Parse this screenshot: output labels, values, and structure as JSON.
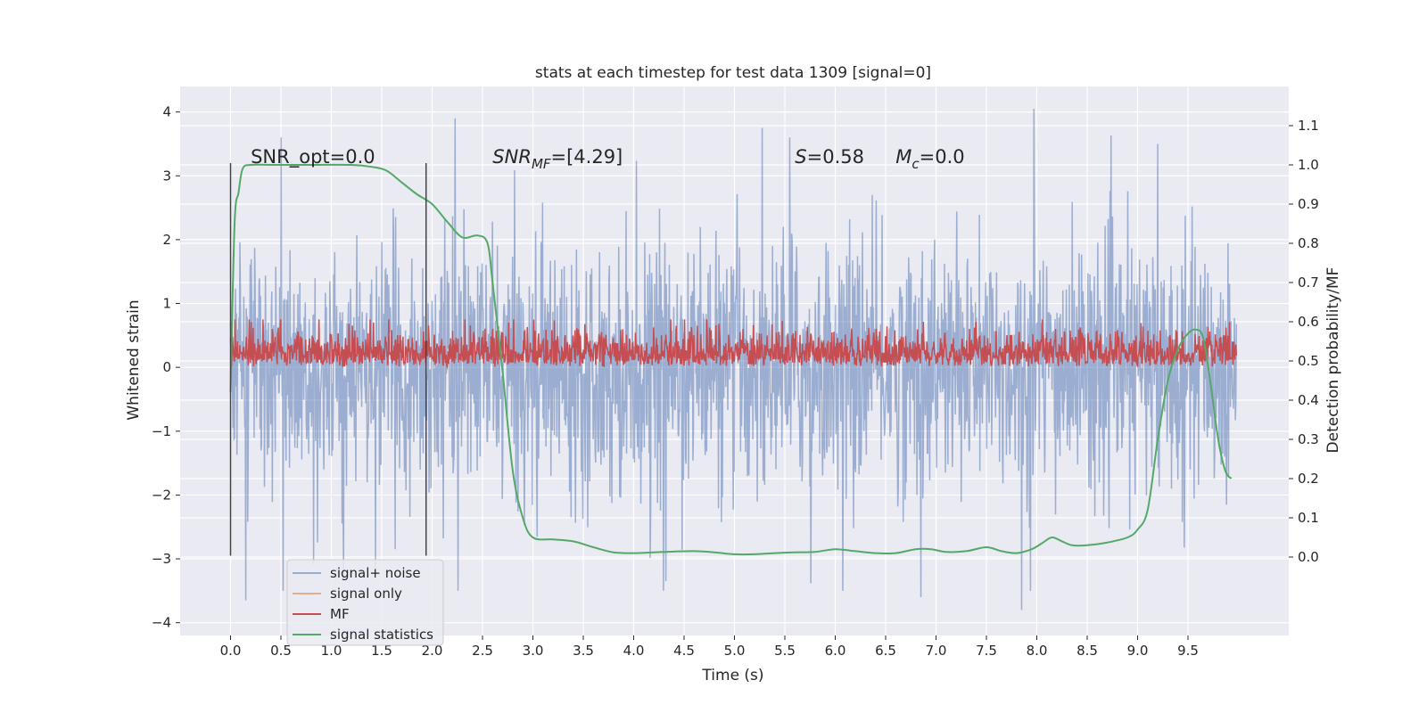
{
  "chart_data": {
    "type": "line",
    "title": "stats at each timestep for test data 1309 [signal=0]",
    "xlabel": "Time (s)",
    "ylabel": "Whitened strain",
    "y2label": "Detection probability/MF",
    "xlim": [
      -0.5,
      10.5
    ],
    "ylim": [
      -4.2,
      4.4
    ],
    "y2lim": [
      -0.2,
      1.2
    ],
    "x_ticks": [
      0.0,
      0.5,
      1.0,
      1.5,
      2.0,
      2.5,
      3.0,
      3.5,
      4.0,
      4.5,
      5.0,
      5.5,
      6.0,
      6.5,
      7.0,
      7.5,
      8.0,
      8.5,
      9.0,
      9.5
    ],
    "x_tick_labels": [
      "0.0",
      "0.5",
      "1.0",
      "1.5",
      "2.0",
      "2.5",
      "3.0",
      "3.5",
      "4.0",
      "4.5",
      "5.0",
      "5.5",
      "6.0",
      "6.5",
      "7.0",
      "7.5",
      "8.0",
      "8.5",
      "9.0",
      "9.5"
    ],
    "y_ticks": [
      -4,
      -3,
      -2,
      -1,
      0,
      1,
      2,
      3,
      4
    ],
    "y_tick_labels": [
      "−4",
      "−3",
      "−2",
      "−1",
      "0",
      "1",
      "2",
      "3",
      "4"
    ],
    "y2_ticks": [
      0.0,
      0.1,
      0.2,
      0.3,
      0.4,
      0.5,
      0.6,
      0.7,
      0.8,
      0.9,
      1.0,
      1.1
    ],
    "y2_tick_labels": [
      "0.0",
      "0.1",
      "0.2",
      "0.3",
      "0.4",
      "0.5",
      "0.6",
      "0.7",
      "0.8",
      "0.9",
      "1.0",
      "1.1"
    ],
    "grid": true,
    "legend_position": "lower-left",
    "annotations": [
      {
        "text": "SNR_opt=0.0",
        "x": 0.2,
        "y": 3.2
      },
      {
        "base": "SNR",
        "sub": "MF",
        "rest": "=[4.29]",
        "x": 2.6,
        "y": 3.2
      },
      {
        "base": "S",
        "sub": "",
        "rest": "=0.58",
        "x": 5.6,
        "y": 3.2
      },
      {
        "base": "M",
        "sub": "c",
        "rest": "=0.0",
        "x": 6.6,
        "y": 3.2
      }
    ],
    "vlines": [
      {
        "x": 0.0,
        "y_range": [
          -2.95,
          3.2
        ]
      },
      {
        "x": 1.94,
        "y_range": [
          -2.95,
          3.2
        ]
      }
    ],
    "series": [
      {
        "name": "signal+ noise",
        "axis": "left",
        "color": "#4c72b0",
        "alpha": 0.5,
        "x_range": [
          0.0,
          9.98
        ],
        "samples": 2048,
        "envelope": {
          "typical": 1.2,
          "peaks_max": 4.05,
          "troughs_min": -3.8
        },
        "x_spikes": [
          [
            0.5,
            3.6
          ],
          [
            2.23,
            3.9
          ],
          [
            5.55,
            3.6
          ],
          [
            7.97,
            4.05
          ],
          [
            9.2,
            3.5
          ],
          [
            0.15,
            -3.65
          ],
          [
            6.85,
            -3.6
          ],
          [
            7.85,
            -3.8
          ],
          [
            1.12,
            -3.3
          ],
          [
            4.32,
            -3.35
          ]
        ]
      },
      {
        "name": "signal only",
        "axis": "left",
        "color": "#dd8452",
        "alpha": 0.6,
        "values": []
      },
      {
        "name": "MF",
        "axis": "left",
        "color": "#c44e52",
        "x_range": [
          0.0,
          9.98
        ],
        "samples": 2048,
        "envelope": {
          "base": 0.0,
          "typical": 0.35,
          "max": 0.75
        }
      },
      {
        "name": "signal statistics",
        "axis": "right",
        "color": "#55a868",
        "x": [
          0.0,
          0.04,
          0.08,
          0.12,
          0.2,
          0.4,
          0.8,
          1.2,
          1.4,
          1.55,
          1.7,
          1.85,
          2.0,
          2.15,
          2.3,
          2.45,
          2.55,
          2.6,
          2.7,
          2.8,
          2.9,
          3.0,
          3.2,
          3.4,
          3.6,
          3.8,
          4.0,
          4.2,
          4.4,
          4.6,
          4.8,
          5.0,
          5.2,
          5.4,
          5.6,
          5.8,
          6.0,
          6.2,
          6.4,
          6.6,
          6.8,
          6.95,
          7.1,
          7.3,
          7.5,
          7.65,
          7.8,
          7.95,
          8.05,
          8.15,
          8.25,
          8.35,
          8.5,
          8.7,
          8.9,
          9.0,
          9.1,
          9.2,
          9.3,
          9.4,
          9.5,
          9.58,
          9.65,
          9.72,
          9.8,
          9.87,
          9.93
        ],
        "values": [
          0.42,
          0.85,
          0.93,
          0.99,
          1.0,
          1.0,
          1.0,
          1.0,
          0.995,
          0.985,
          0.955,
          0.925,
          0.9,
          0.855,
          0.815,
          0.82,
          0.8,
          0.7,
          0.47,
          0.22,
          0.1,
          0.05,
          0.045,
          0.04,
          0.025,
          0.012,
          0.01,
          0.012,
          0.014,
          0.015,
          0.012,
          0.007,
          0.007,
          0.01,
          0.012,
          0.013,
          0.02,
          0.015,
          0.01,
          0.01,
          0.02,
          0.02,
          0.013,
          0.015,
          0.025,
          0.015,
          0.01,
          0.02,
          0.035,
          0.05,
          0.04,
          0.03,
          0.03,
          0.037,
          0.05,
          0.07,
          0.12,
          0.3,
          0.45,
          0.53,
          0.57,
          0.58,
          0.56,
          0.45,
          0.3,
          0.22,
          0.2
        ]
      }
    ]
  }
}
